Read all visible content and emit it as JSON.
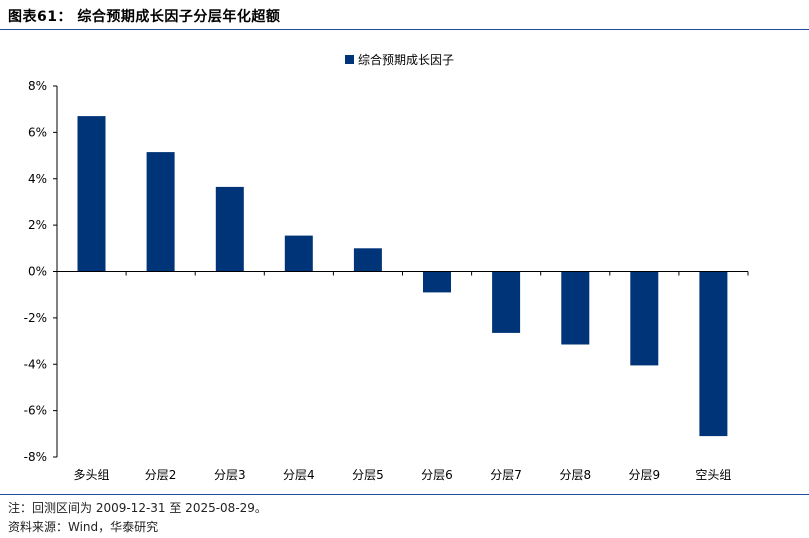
{
  "figure_title": "图表61：  综合预期成长因子分层年化超额",
  "footnotes": {
    "note": "注：回测区间为 2009-12-31 至 2025-08-29。",
    "source": "资料来源：Wind，华泰研究"
  },
  "colors": {
    "bar": "#003478",
    "rule": "#1f4e9a",
    "axis": "#000000"
  },
  "chart_data": {
    "type": "bar",
    "title": "",
    "xlabel": "",
    "ylabel": "",
    "legend": {
      "label": "综合预期成长因子",
      "position": "top-center"
    },
    "categories": [
      "多头组",
      "分层2",
      "分层3",
      "分层4",
      "分层5",
      "分层6",
      "分层7",
      "分层8",
      "分层9",
      "空头组"
    ],
    "series": [
      {
        "name": "综合预期成长因子",
        "values": [
          6.7,
          5.15,
          3.65,
          1.55,
          1.0,
          -0.9,
          -2.65,
          -3.15,
          -4.05,
          -7.1
        ]
      }
    ],
    "ylim": [
      -8,
      8
    ],
    "yticks": [
      8,
      6,
      4,
      2,
      0,
      -2,
      -4,
      -6,
      -8
    ],
    "ytick_labels": [
      "8%",
      "6%",
      "4%",
      "2%",
      "0%",
      "-2%",
      "-4%",
      "-6%",
      "-8%"
    ],
    "grid": false
  }
}
